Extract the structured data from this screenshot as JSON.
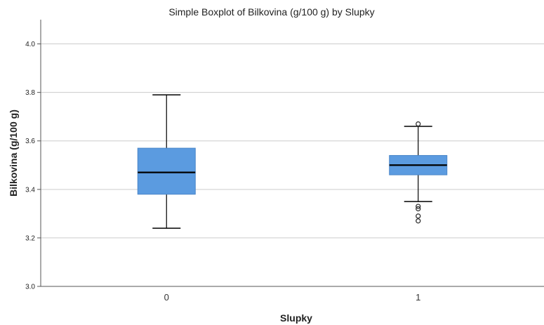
{
  "chart_data": {
    "type": "boxplot",
    "title": "Simple Boxplot of Bilkovina (g/100 g) by Slupky",
    "xlabel": "Slupky",
    "ylabel": "Bilkovina (g/100 g)",
    "ylim": [
      3.0,
      4.1
    ],
    "yticks": [
      "3.0",
      "3.2",
      "3.4",
      "3.6",
      "3.8",
      "4.0"
    ],
    "grid": true,
    "categories": [
      "0",
      "1"
    ],
    "boxes": [
      {
        "category": "0",
        "whisker_low": 3.24,
        "q1": 3.38,
        "median": 3.47,
        "q3": 3.57,
        "whisker_high": 3.79,
        "outliers": []
      },
      {
        "category": "1",
        "whisker_low": 3.35,
        "q1": 3.46,
        "median": 3.5,
        "q3": 3.54,
        "whisker_high": 3.66,
        "outliers": [
          3.67,
          3.32,
          3.33,
          3.29,
          3.27
        ]
      }
    ],
    "colors": {
      "box_fill": "#5b9be0",
      "box_stroke": "#4a86c8",
      "grid": "#cccccc",
      "axis": "#555555",
      "median": "#000000",
      "whisker": "#000000",
      "outlier": "#333333"
    }
  }
}
